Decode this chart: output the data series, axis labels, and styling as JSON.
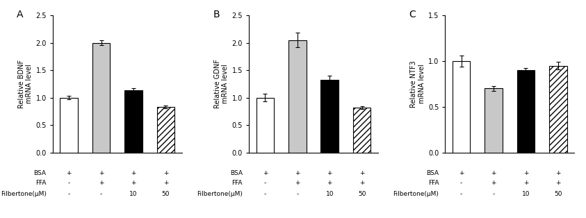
{
  "panels": [
    {
      "label": "A",
      "ylabel": "Relative BDNF\nmRNA level",
      "ylim": [
        0,
        2.5
      ],
      "yticks": [
        0.0,
        0.5,
        1.0,
        1.5,
        2.0,
        2.5
      ],
      "values": [
        1.0,
        2.0,
        1.13,
        0.83
      ],
      "errors": [
        0.03,
        0.04,
        0.04,
        0.03
      ],
      "colors": [
        "white",
        "#c8c8c8",
        "black",
        "white"
      ],
      "hatches": [
        "",
        "",
        "",
        "////"
      ]
    },
    {
      "label": "B",
      "ylabel": "Relative GDNF\nmRNA level",
      "ylim": [
        0,
        2.5
      ],
      "yticks": [
        0.0,
        0.5,
        1.0,
        1.5,
        2.0,
        2.5
      ],
      "values": [
        1.0,
        2.05,
        1.32,
        0.82
      ],
      "errors": [
        0.07,
        0.13,
        0.08,
        0.03
      ],
      "colors": [
        "white",
        "#c8c8c8",
        "black",
        "white"
      ],
      "hatches": [
        "",
        "",
        "",
        "////"
      ]
    },
    {
      "label": "C",
      "ylabel": "Relative NTF3\nmRNA level",
      "ylim": [
        0,
        1.5
      ],
      "yticks": [
        0.0,
        0.5,
        1.0,
        1.5
      ],
      "values": [
        1.0,
        0.7,
        0.9,
        0.95
      ],
      "errors": [
        0.06,
        0.03,
        0.02,
        0.04
      ],
      "colors": [
        "white",
        "#c8c8c8",
        "black",
        "white"
      ],
      "hatches": [
        "",
        "",
        "",
        "////"
      ]
    }
  ],
  "x_labels_rows": [
    [
      "BSA",
      "+",
      "+",
      "+",
      "+"
    ],
    [
      "FFA",
      "-",
      "+",
      "+",
      "+"
    ],
    [
      "Filbertone(μM)",
      "-",
      "-",
      "10",
      "50"
    ]
  ],
  "bar_width": 0.55,
  "edgecolor": "black",
  "background_color": "white",
  "label_fontsize": 6.5,
  "tick_fontsize": 7,
  "ylabel_fontsize": 7,
  "panel_label_fontsize": 10
}
